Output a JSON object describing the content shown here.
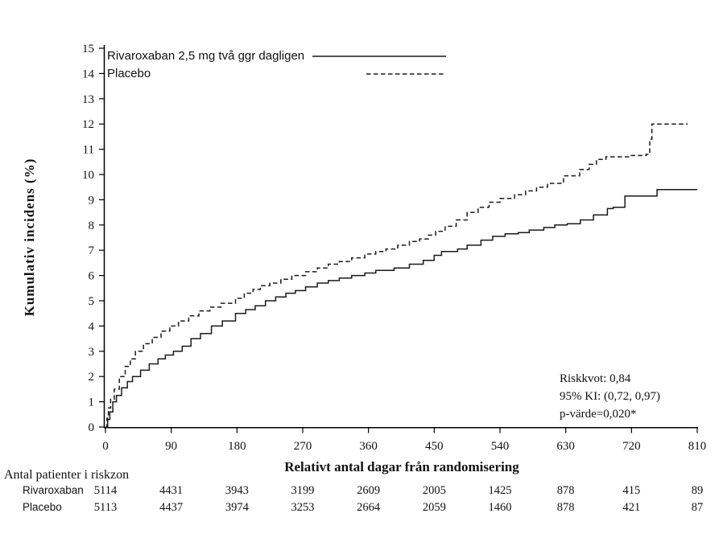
{
  "chart_data": {
    "type": "line",
    "title": "",
    "xlabel": "Relativt antal dagar från randomisering",
    "ylabel": "Kumulativ incidens (%)",
    "xlim": [
      0,
      810
    ],
    "ylim": [
      0,
      15
    ],
    "x_ticks": [
      0,
      90,
      180,
      270,
      360,
      450,
      540,
      630,
      720,
      810
    ],
    "y_ticks": [
      0,
      1,
      2,
      3,
      4,
      5,
      6,
      7,
      8,
      9,
      10,
      11,
      12,
      13,
      14,
      15
    ],
    "grid": false,
    "legend_position": "top-left",
    "step_mode": "after",
    "series": [
      {
        "name": "Rivaroxaban 2,5 mg två ggr dagligen",
        "line": "solid",
        "points": [
          [
            0,
            0
          ],
          [
            3,
            0.3
          ],
          [
            6,
            0.6
          ],
          [
            10,
            1.0
          ],
          [
            15,
            1.25
          ],
          [
            22,
            1.55
          ],
          [
            30,
            1.8
          ],
          [
            37,
            2.0
          ],
          [
            48,
            2.25
          ],
          [
            60,
            2.5
          ],
          [
            72,
            2.7
          ],
          [
            82,
            2.85
          ],
          [
            93,
            3.0
          ],
          [
            105,
            3.2
          ],
          [
            117,
            3.5
          ],
          [
            130,
            3.7
          ],
          [
            145,
            4.0
          ],
          [
            160,
            4.2
          ],
          [
            178,
            4.5
          ],
          [
            192,
            4.65
          ],
          [
            205,
            4.8
          ],
          [
            219,
            5.0
          ],
          [
            233,
            5.15
          ],
          [
            247,
            5.3
          ],
          [
            260,
            5.4
          ],
          [
            274,
            5.55
          ],
          [
            290,
            5.7
          ],
          [
            305,
            5.8
          ],
          [
            320,
            5.9
          ],
          [
            337,
            6.0
          ],
          [
            355,
            6.1
          ],
          [
            370,
            6.2
          ],
          [
            395,
            6.3
          ],
          [
            416,
            6.45
          ],
          [
            435,
            6.6
          ],
          [
            450,
            6.8
          ],
          [
            460,
            6.95
          ],
          [
            482,
            7.05
          ],
          [
            495,
            7.2
          ],
          [
            514,
            7.4
          ],
          [
            530,
            7.55
          ],
          [
            547,
            7.65
          ],
          [
            565,
            7.7
          ],
          [
            580,
            7.8
          ],
          [
            600,
            7.9
          ],
          [
            615,
            8.0
          ],
          [
            632,
            8.05
          ],
          [
            650,
            8.2
          ],
          [
            668,
            8.4
          ],
          [
            687,
            8.65
          ],
          [
            695,
            8.7
          ],
          [
            711,
            9.15
          ],
          [
            755,
            9.4
          ],
          [
            810,
            9.4
          ]
        ]
      },
      {
        "name": "Placebo",
        "line": "dashed",
        "points": [
          [
            0,
            0
          ],
          [
            2,
            0.35
          ],
          [
            4,
            0.75
          ],
          [
            7,
            1.1
          ],
          [
            12,
            1.5
          ],
          [
            19,
            2.0
          ],
          [
            27,
            2.4
          ],
          [
            34,
            2.7
          ],
          [
            41,
            3.0
          ],
          [
            52,
            3.3
          ],
          [
            64,
            3.55
          ],
          [
            76,
            3.8
          ],
          [
            88,
            4.0
          ],
          [
            100,
            4.2
          ],
          [
            114,
            4.4
          ],
          [
            128,
            4.6
          ],
          [
            143,
            4.75
          ],
          [
            158,
            4.9
          ],
          [
            178,
            5.1
          ],
          [
            190,
            5.3
          ],
          [
            202,
            5.45
          ],
          [
            212,
            5.6
          ],
          [
            225,
            5.7
          ],
          [
            240,
            5.85
          ],
          [
            255,
            6.0
          ],
          [
            274,
            6.15
          ],
          [
            290,
            6.3
          ],
          [
            305,
            6.45
          ],
          [
            320,
            6.55
          ],
          [
            337,
            6.7
          ],
          [
            355,
            6.85
          ],
          [
            370,
            6.95
          ],
          [
            384,
            7.05
          ],
          [
            400,
            7.2
          ],
          [
            416,
            7.35
          ],
          [
            430,
            7.45
          ],
          [
            442,
            7.6
          ],
          [
            452,
            7.75
          ],
          [
            465,
            7.95
          ],
          [
            480,
            8.2
          ],
          [
            495,
            8.5
          ],
          [
            510,
            8.7
          ],
          [
            525,
            8.9
          ],
          [
            540,
            9.05
          ],
          [
            560,
            9.2
          ],
          [
            575,
            9.35
          ],
          [
            590,
            9.5
          ],
          [
            605,
            9.65
          ],
          [
            627,
            9.95
          ],
          [
            649,
            10.2
          ],
          [
            662,
            10.4
          ],
          [
            672,
            10.6
          ],
          [
            685,
            10.7
          ],
          [
            718,
            10.75
          ],
          [
            740,
            10.8
          ],
          [
            745,
            11.4
          ],
          [
            748,
            12.0
          ],
          [
            797,
            12.0
          ]
        ]
      }
    ],
    "annotations": [
      "Riskkvot:  0,84",
      "95% KI:  (0,72, 0,97)",
      "p-värde=0,020*"
    ]
  },
  "risk_table": {
    "title": "Antal patienter i riskzon",
    "columns_days": [
      0,
      90,
      180,
      270,
      360,
      450,
      540,
      630,
      720,
      810
    ],
    "rows": [
      {
        "label": "Rivaroxaban",
        "values": [
          5114,
          4431,
          3943,
          3199,
          2609,
          2005,
          1425,
          878,
          415,
          89
        ]
      },
      {
        "label": "Placebo",
        "values": [
          5113,
          4437,
          3974,
          3253,
          2664,
          2059,
          1460,
          878,
          421,
          87
        ]
      }
    ]
  },
  "colors": {
    "line": "#1a1a1a",
    "axis": "#000000"
  }
}
